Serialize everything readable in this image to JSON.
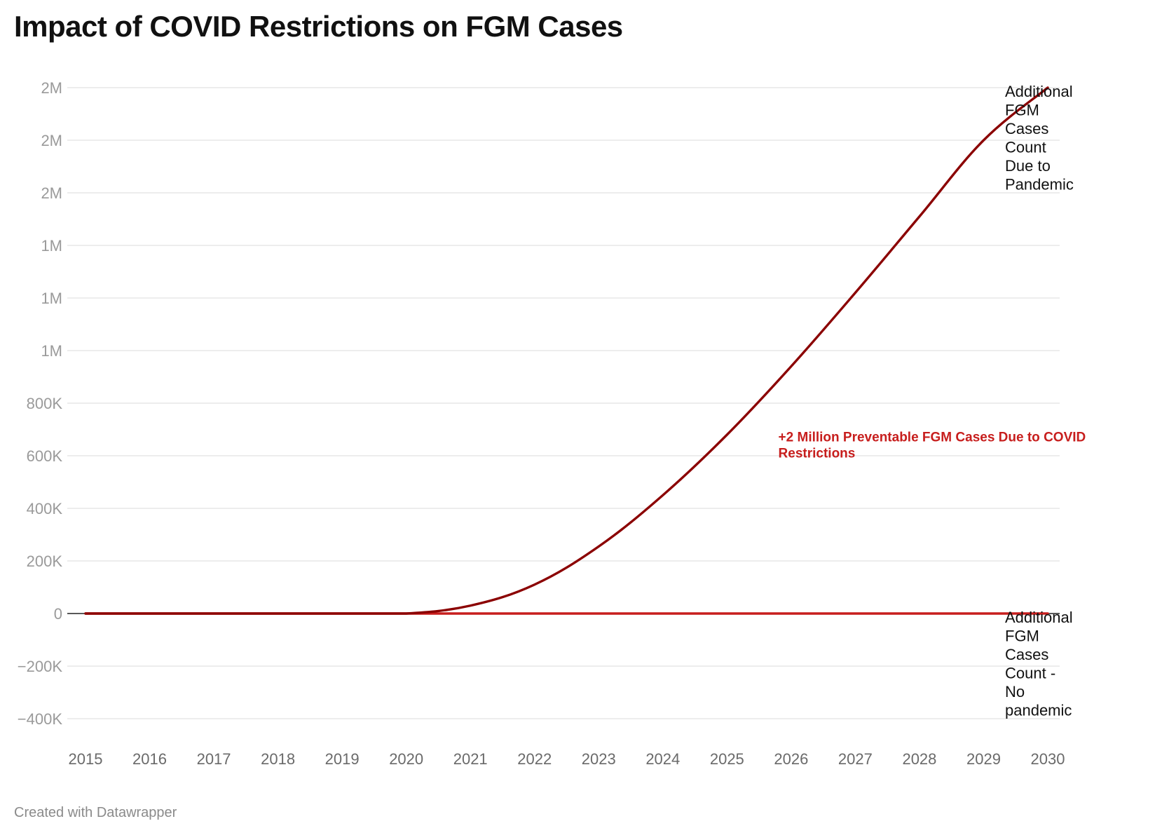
{
  "chart_data": {
    "type": "line",
    "title": "Impact of COVID Restrictions on FGM Cases",
    "xlabel": "",
    "ylabel": "",
    "x": [
      2015,
      2016,
      2017,
      2018,
      2019,
      2020,
      2021,
      2022,
      2023,
      2024,
      2025,
      2026,
      2027,
      2028,
      2029,
      2030
    ],
    "series": [
      {
        "name": "Additional FGM Cases Count Due to Pandemic",
        "label_lines": [
          "Additional",
          "FGM",
          "Cases",
          "Count",
          "Due to",
          "Pandemic"
        ],
        "color": "#8b0000",
        "values": [
          0,
          0,
          0,
          0,
          0,
          0,
          30000,
          110000,
          255000,
          450000,
          680000,
          940000,
          1220000,
          1510000,
          1800000,
          2000000
        ]
      },
      {
        "name": "Additional FGM Cases Count - No pandemic",
        "label_lines": [
          "Additional",
          "FGM",
          "Cases",
          "Count -",
          "No",
          "pandemic"
        ],
        "color": "#c71e1d",
        "values": [
          0,
          0,
          0,
          0,
          0,
          0,
          0,
          0,
          0,
          0,
          0,
          0,
          0,
          0,
          0,
          0
        ]
      }
    ],
    "ylim": [
      -400000,
      2000000
    ],
    "y_ticks": [
      {
        "value": 2000000,
        "label": "2M"
      },
      {
        "value": 1800000,
        "label": "2M"
      },
      {
        "value": 1600000,
        "label": "2M"
      },
      {
        "value": 1400000,
        "label": "1M"
      },
      {
        "value": 1200000,
        "label": "1M"
      },
      {
        "value": 1000000,
        "label": "1M"
      },
      {
        "value": 800000,
        "label": "800K"
      },
      {
        "value": 600000,
        "label": "600K"
      },
      {
        "value": 400000,
        "label": "400K"
      },
      {
        "value": 200000,
        "label": "200K"
      },
      {
        "value": 0,
        "label": "0"
      },
      {
        "value": -200000,
        "label": "−200K"
      },
      {
        "value": -400000,
        "label": "−400K"
      }
    ],
    "x_ticks": [
      "2015",
      "2016",
      "2017",
      "2018",
      "2019",
      "2020",
      "2021",
      "2022",
      "2023",
      "2024",
      "2025",
      "2026",
      "2027",
      "2028",
      "2029",
      "2030"
    ],
    "annotations": [
      {
        "lines": [
          "+2 Million Preventable FGM Cases Due to COVID",
          "Restrictions"
        ],
        "x": 2025.8,
        "y": 655000,
        "color": "#c71e1d"
      }
    ],
    "grid": true,
    "legend": "direct labels at line ends (right)"
  },
  "footer": {
    "source": "Created with Datawrapper"
  }
}
